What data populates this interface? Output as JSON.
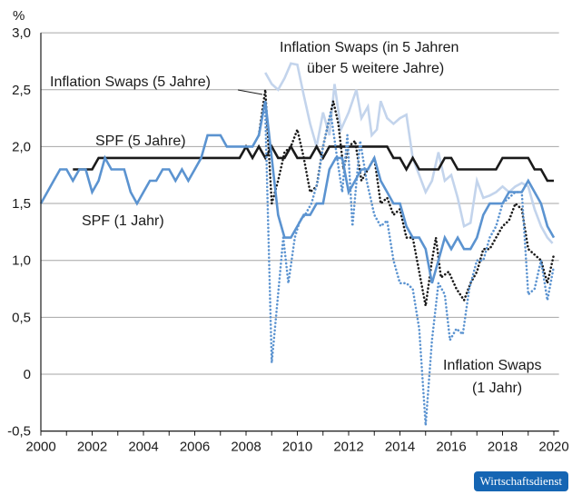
{
  "chart_data": {
    "type": "line",
    "ylabel": "%",
    "xlim": [
      2000,
      2020.2
    ],
    "ylim": [
      -0.5,
      3.0
    ],
    "xticks": [
      "2000",
      "2002",
      "2004",
      "2006",
      "2008",
      "2010",
      "2012",
      "2014",
      "2016",
      "2018",
      "2020"
    ],
    "yticks": [
      "-0,5",
      "0",
      "0,5",
      "1,0",
      "1,5",
      "2,0",
      "2,5",
      "3,0"
    ],
    "grid": "horizontal",
    "colors": {
      "spf1": "#5b93d0",
      "spf5": "#1a1a1a",
      "swap5y5y": "#c3d4ec",
      "swap5": "#1a1a1a",
      "swap1": "#5b93d0"
    },
    "series": [
      {
        "name": "SPF (1 Jahr)",
        "style": "solid",
        "color": "#5b93d0",
        "points": [
          [
            2000,
            1.5
          ],
          [
            2000.25,
            1.6
          ],
          [
            2000.5,
            1.7
          ],
          [
            2000.75,
            1.8
          ],
          [
            2001,
            1.8
          ],
          [
            2001.25,
            1.7
          ],
          [
            2001.5,
            1.8
          ],
          [
            2001.75,
            1.8
          ],
          [
            2002,
            1.6
          ],
          [
            2002.25,
            1.7
          ],
          [
            2002.5,
            1.9
          ],
          [
            2002.75,
            1.8
          ],
          [
            2003,
            1.8
          ],
          [
            2003.25,
            1.8
          ],
          [
            2003.5,
            1.6
          ],
          [
            2003.75,
            1.5
          ],
          [
            2004,
            1.6
          ],
          [
            2004.25,
            1.7
          ],
          [
            2004.5,
            1.7
          ],
          [
            2004.75,
            1.8
          ],
          [
            2005,
            1.8
          ],
          [
            2005.25,
            1.7
          ],
          [
            2005.5,
            1.8
          ],
          [
            2005.75,
            1.7
          ],
          [
            2006,
            1.8
          ],
          [
            2006.25,
            1.9
          ],
          [
            2006.5,
            2.1
          ],
          [
            2006.75,
            2.1
          ],
          [
            2007,
            2.1
          ],
          [
            2007.25,
            2.0
          ],
          [
            2007.5,
            2.0
          ],
          [
            2007.75,
            2.0
          ],
          [
            2008,
            2.0
          ],
          [
            2008.25,
            2.0
          ],
          [
            2008.5,
            2.1
          ],
          [
            2008.75,
            2.4
          ],
          [
            2009,
            1.9
          ],
          [
            2009.25,
            1.4
          ],
          [
            2009.5,
            1.2
          ],
          [
            2009.75,
            1.2
          ],
          [
            2010,
            1.3
          ],
          [
            2010.25,
            1.4
          ],
          [
            2010.5,
            1.4
          ],
          [
            2010.75,
            1.5
          ],
          [
            2011,
            1.5
          ],
          [
            2011.25,
            1.8
          ],
          [
            2011.5,
            1.9
          ],
          [
            2011.75,
            1.9
          ],
          [
            2012,
            1.6
          ],
          [
            2012.25,
            1.7
          ],
          [
            2012.5,
            1.8
          ],
          [
            2012.75,
            1.8
          ],
          [
            2013,
            1.9
          ],
          [
            2013.25,
            1.7
          ],
          [
            2013.5,
            1.6
          ],
          [
            2013.75,
            1.5
          ],
          [
            2014,
            1.5
          ],
          [
            2014.25,
            1.3
          ],
          [
            2014.5,
            1.2
          ],
          [
            2014.75,
            1.2
          ],
          [
            2015,
            1.1
          ],
          [
            2015.25,
            0.8
          ],
          [
            2015.5,
            1.0
          ],
          [
            2015.75,
            1.2
          ],
          [
            2016,
            1.1
          ],
          [
            2016.25,
            1.2
          ],
          [
            2016.5,
            1.1
          ],
          [
            2016.75,
            1.1
          ],
          [
            2017,
            1.2
          ],
          [
            2017.25,
            1.4
          ],
          [
            2017.5,
            1.5
          ],
          [
            2017.75,
            1.5
          ],
          [
            2018,
            1.5
          ],
          [
            2018.25,
            1.6
          ],
          [
            2018.5,
            1.6
          ],
          [
            2018.75,
            1.6
          ],
          [
            2019,
            1.7
          ],
          [
            2019.25,
            1.6
          ],
          [
            2019.5,
            1.5
          ],
          [
            2019.75,
            1.3
          ],
          [
            2020,
            1.2
          ]
        ]
      },
      {
        "name": "SPF (5 Jahre)",
        "style": "solid",
        "color": "#1a1a1a",
        "points": [
          [
            2001.25,
            1.8
          ],
          [
            2002,
            1.8
          ],
          [
            2002.25,
            1.9
          ],
          [
            2007.75,
            1.9
          ],
          [
            2008,
            2.0
          ],
          [
            2008.25,
            1.9
          ],
          [
            2008.5,
            2.0
          ],
          [
            2008.75,
            1.9
          ],
          [
            2009,
            2.0
          ],
          [
            2009.25,
            1.9
          ],
          [
            2009.5,
            1.9
          ],
          [
            2009.75,
            2.0
          ],
          [
            2010,
            1.9
          ],
          [
            2010.25,
            1.9
          ],
          [
            2010.5,
            1.9
          ],
          [
            2010.75,
            2.0
          ],
          [
            2011,
            1.9
          ],
          [
            2011.25,
            2.0
          ],
          [
            2013.5,
            2.0
          ],
          [
            2013.75,
            1.9
          ],
          [
            2014,
            1.9
          ],
          [
            2014.25,
            1.8
          ],
          [
            2014.5,
            1.9
          ],
          [
            2014.75,
            1.8
          ],
          [
            2015.5,
            1.8
          ],
          [
            2015.75,
            1.9
          ],
          [
            2016,
            1.9
          ],
          [
            2016.25,
            1.8
          ],
          [
            2017.75,
            1.8
          ],
          [
            2018,
            1.9
          ],
          [
            2019,
            1.9
          ],
          [
            2019.25,
            1.8
          ],
          [
            2019.5,
            1.8
          ],
          [
            2019.75,
            1.7
          ],
          [
            2020,
            1.7
          ]
        ]
      },
      {
        "name": "Inflation Swaps (in 5 Jahren über 5 weitere Jahre)",
        "style": "solid",
        "color": "#c3d4ec",
        "points": [
          [
            2008.75,
            2.65
          ],
          [
            2009,
            2.55
          ],
          [
            2009.25,
            2.5
          ],
          [
            2009.5,
            2.6
          ],
          [
            2009.75,
            2.73
          ],
          [
            2010,
            2.72
          ],
          [
            2010.25,
            2.45
          ],
          [
            2010.5,
            2.2
          ],
          [
            2010.75,
            2.0
          ],
          [
            2011,
            2.3
          ],
          [
            2011.25,
            2.1
          ],
          [
            2011.45,
            2.55
          ],
          [
            2011.7,
            2.15
          ],
          [
            2012,
            2.3
          ],
          [
            2012.3,
            2.5
          ],
          [
            2012.5,
            2.25
          ],
          [
            2012.75,
            2.35
          ],
          [
            2012.9,
            2.1
          ],
          [
            2013.1,
            2.15
          ],
          [
            2013.25,
            2.4
          ],
          [
            2013.5,
            2.25
          ],
          [
            2013.75,
            2.2
          ],
          [
            2014,
            2.25
          ],
          [
            2014.25,
            2.28
          ],
          [
            2014.5,
            1.9
          ],
          [
            2014.75,
            1.75
          ],
          [
            2015,
            1.6
          ],
          [
            2015.25,
            1.7
          ],
          [
            2015.5,
            1.95
          ],
          [
            2015.75,
            1.7
          ],
          [
            2016,
            1.75
          ],
          [
            2016.25,
            1.55
          ],
          [
            2016.5,
            1.3
          ],
          [
            2016.75,
            1.33
          ],
          [
            2017,
            1.7
          ],
          [
            2017.25,
            1.55
          ],
          [
            2017.5,
            1.57
          ],
          [
            2017.75,
            1.6
          ],
          [
            2018,
            1.65
          ],
          [
            2018.25,
            1.6
          ],
          [
            2018.5,
            1.65
          ],
          [
            2018.75,
            1.68
          ],
          [
            2019,
            1.65
          ],
          [
            2019.25,
            1.45
          ],
          [
            2019.5,
            1.3
          ],
          [
            2019.75,
            1.2
          ],
          [
            2019.95,
            1.15
          ]
        ]
      },
      {
        "name": "Inflation Swaps (5 Jahre)",
        "style": "dotted",
        "color": "#1a1a1a",
        "points": [
          [
            2008.5,
            2.1
          ],
          [
            2008.75,
            2.5
          ],
          [
            2009,
            1.5
          ],
          [
            2009.25,
            1.7
          ],
          [
            2009.5,
            1.95
          ],
          [
            2009.75,
            2.0
          ],
          [
            2010,
            2.15
          ],
          [
            2010.25,
            1.9
          ],
          [
            2010.5,
            1.6
          ],
          [
            2010.75,
            1.65
          ],
          [
            2011,
            2.0
          ],
          [
            2011.4,
            2.4
          ],
          [
            2011.6,
            2.2
          ],
          [
            2011.8,
            1.8
          ],
          [
            2012,
            2.0
          ],
          [
            2012.25,
            2.05
          ],
          [
            2012.5,
            1.7
          ],
          [
            2012.75,
            1.8
          ],
          [
            2013,
            1.9
          ],
          [
            2013.25,
            1.5
          ],
          [
            2013.5,
            1.55
          ],
          [
            2013.75,
            1.4
          ],
          [
            2014,
            1.45
          ],
          [
            2014.25,
            1.2
          ],
          [
            2014.5,
            1.2
          ],
          [
            2014.75,
            0.9
          ],
          [
            2015,
            0.6
          ],
          [
            2015.25,
            1.0
          ],
          [
            2015.4,
            1.2
          ],
          [
            2015.6,
            0.85
          ],
          [
            2015.9,
            0.9
          ],
          [
            2016.2,
            0.75
          ],
          [
            2016.5,
            0.65
          ],
          [
            2016.75,
            0.8
          ],
          [
            2017,
            0.9
          ],
          [
            2017.25,
            1.1
          ],
          [
            2017.5,
            1.1
          ],
          [
            2017.75,
            1.2
          ],
          [
            2018,
            1.3
          ],
          [
            2018.25,
            1.35
          ],
          [
            2018.5,
            1.5
          ],
          [
            2018.75,
            1.45
          ],
          [
            2019,
            1.1
          ],
          [
            2019.25,
            1.05
          ],
          [
            2019.5,
            1.0
          ],
          [
            2019.75,
            0.8
          ],
          [
            2020,
            1.05
          ]
        ]
      },
      {
        "name": "Inflation Swaps (1 Jahr)",
        "style": "dotted",
        "color": "#5b93d0",
        "points": [
          [
            2008.75,
            2.3
          ],
          [
            2009,
            0.1
          ],
          [
            2009.25,
            0.7
          ],
          [
            2009.45,
            1.2
          ],
          [
            2009.65,
            0.8
          ],
          [
            2009.9,
            1.2
          ],
          [
            2010.1,
            1.35
          ],
          [
            2010.3,
            1.4
          ],
          [
            2010.55,
            1.5
          ],
          [
            2010.8,
            1.7
          ],
          [
            2011,
            2.0
          ],
          [
            2011.3,
            2.3
          ],
          [
            2011.55,
            1.9
          ],
          [
            2011.75,
            1.6
          ],
          [
            2011.95,
            2.1
          ],
          [
            2012.15,
            1.3
          ],
          [
            2012.45,
            2.05
          ],
          [
            2012.7,
            1.7
          ],
          [
            2013,
            1.4
          ],
          [
            2013.25,
            1.3
          ],
          [
            2013.5,
            1.35
          ],
          [
            2013.75,
            1.0
          ],
          [
            2014,
            0.8
          ],
          [
            2014.25,
            0.8
          ],
          [
            2014.5,
            0.75
          ],
          [
            2014.75,
            0.4
          ],
          [
            2015,
            -0.45
          ],
          [
            2015.25,
            0.3
          ],
          [
            2015.5,
            0.8
          ],
          [
            2015.75,
            0.7
          ],
          [
            2015.95,
            0.3
          ],
          [
            2016.2,
            0.4
          ],
          [
            2016.45,
            0.35
          ],
          [
            2016.7,
            0.75
          ],
          [
            2017,
            1.0
          ],
          [
            2017.25,
            1.0
          ],
          [
            2017.5,
            1.2
          ],
          [
            2017.75,
            1.3
          ],
          [
            2018,
            1.5
          ],
          [
            2018.25,
            1.55
          ],
          [
            2018.5,
            1.6
          ],
          [
            2018.75,
            1.6
          ],
          [
            2019,
            0.7
          ],
          [
            2019.25,
            0.75
          ],
          [
            2019.5,
            1.0
          ],
          [
            2019.75,
            0.65
          ],
          [
            2020,
            0.95
          ]
        ]
      }
    ]
  },
  "labels": {
    "swap5y5y_line1": "Inflation Swaps (in 5 Jahren",
    "swap5y5y_line2": "über 5 weitere Jahre)",
    "swap5": "Inflation Swaps (5 Jahre)",
    "spf5": "SPF (5 Jahre)",
    "spf1": "SPF (1 Jahr)",
    "swap1_line1": "Inflation Swaps",
    "swap1_line2": "(1 Jahr)"
  },
  "logo": "Wirtschaftsdienst"
}
